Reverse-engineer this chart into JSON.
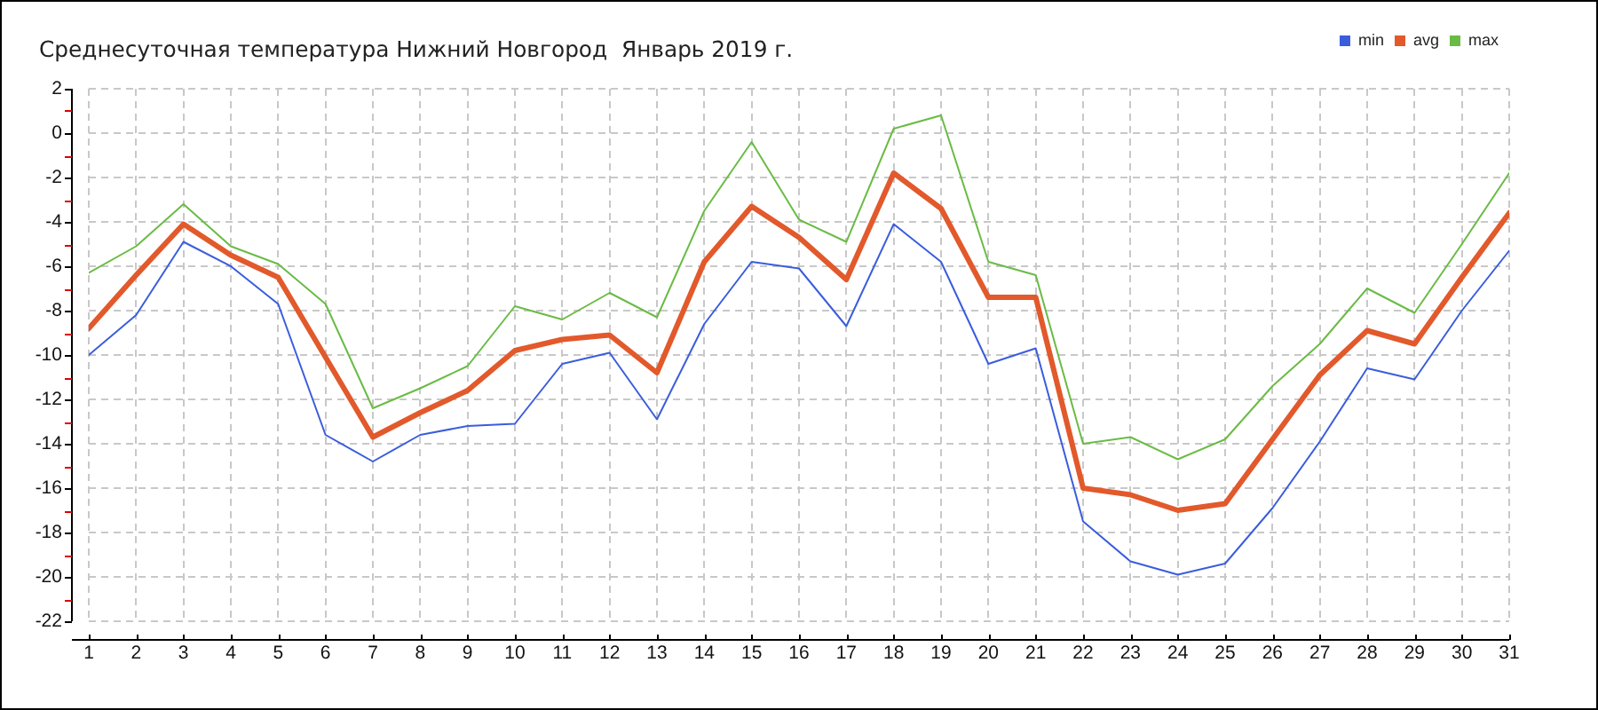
{
  "chart_data": {
    "type": "line",
    "title": "Среднесуточная температура Нижний Новгород  Январь 2019 г.",
    "x": [
      1,
      2,
      3,
      4,
      5,
      6,
      7,
      8,
      9,
      10,
      11,
      12,
      13,
      14,
      15,
      16,
      17,
      18,
      19,
      20,
      21,
      22,
      23,
      24,
      25,
      26,
      27,
      28,
      29,
      30,
      31
    ],
    "series": [
      {
        "name": "min",
        "color": "#3a5ddc",
        "values": [
          -10.0,
          -8.2,
          -4.9,
          -6.0,
          -7.7,
          -13.6,
          -14.8,
          -13.6,
          -13.2,
          -13.1,
          -10.4,
          -9.9,
          -12.9,
          -8.6,
          -5.8,
          -6.1,
          -8.7,
          -4.1,
          -5.8,
          -10.4,
          -9.7,
          -17.5,
          -19.3,
          -19.9,
          -19.4,
          -16.9,
          -13.9,
          -10.6,
          -11.1,
          -8.0,
          -5.3
        ]
      },
      {
        "name": "avg",
        "color": "#e2592b",
        "values": [
          -8.8,
          -6.4,
          -4.1,
          -5.5,
          -6.5,
          -10.1,
          -13.7,
          -12.6,
          -11.6,
          -9.8,
          -9.3,
          -9.1,
          -10.8,
          -5.8,
          -3.3,
          -4.7,
          -6.6,
          -1.8,
          -3.4,
          -7.4,
          -7.4,
          -16.0,
          -16.3,
          -17.0,
          -16.7,
          -13.8,
          -10.9,
          -8.9,
          -9.5,
          -6.5,
          -3.6
        ]
      },
      {
        "name": "max",
        "color": "#6abb45",
        "values": [
          -6.3,
          -5.1,
          -3.2,
          -5.1,
          -5.9,
          -7.7,
          -12.4,
          -11.5,
          -10.5,
          -7.8,
          -8.4,
          -7.2,
          -8.3,
          -3.5,
          -0.4,
          -3.9,
          -4.9,
          0.2,
          0.8,
          -5.8,
          -6.4,
          -14.0,
          -13.7,
          -14.7,
          -13.8,
          -11.4,
          -9.5,
          -7.0,
          -8.1,
          -5.0,
          -1.8
        ]
      }
    ],
    "xlim": [
      1,
      31
    ],
    "xticks": [
      1,
      2,
      3,
      4,
      5,
      6,
      7,
      8,
      9,
      10,
      11,
      12,
      13,
      14,
      15,
      16,
      17,
      18,
      19,
      20,
      21,
      22,
      23,
      24,
      25,
      26,
      27,
      28,
      29,
      30,
      31
    ],
    "ylim": [
      -22,
      2
    ],
    "yticks": [
      -22,
      {
        "value": -21,
        "label": null
      },
      -20,
      {
        "value": -19,
        "label": null
      },
      -18,
      {
        "value": -17,
        "label": null
      },
      -16,
      {
        "value": -15,
        "label": null
      },
      -14,
      {
        "value": -13,
        "label": null
      },
      -12,
      {
        "value": -11,
        "label": null
      },
      -10,
      {
        "value": -9,
        "label": null
      },
      -8,
      {
        "value": -7,
        "label": null
      },
      -6,
      {
        "value": -5,
        "label": null
      },
      -4,
      {
        "value": -3,
        "label": null
      },
      -2,
      {
        "value": -1,
        "label": null
      },
      0,
      {
        "value": 1,
        "label": null
      },
      2
    ],
    "grid": true,
    "legend": "top right",
    "marker": "none",
    "line_style": "solid"
  }
}
